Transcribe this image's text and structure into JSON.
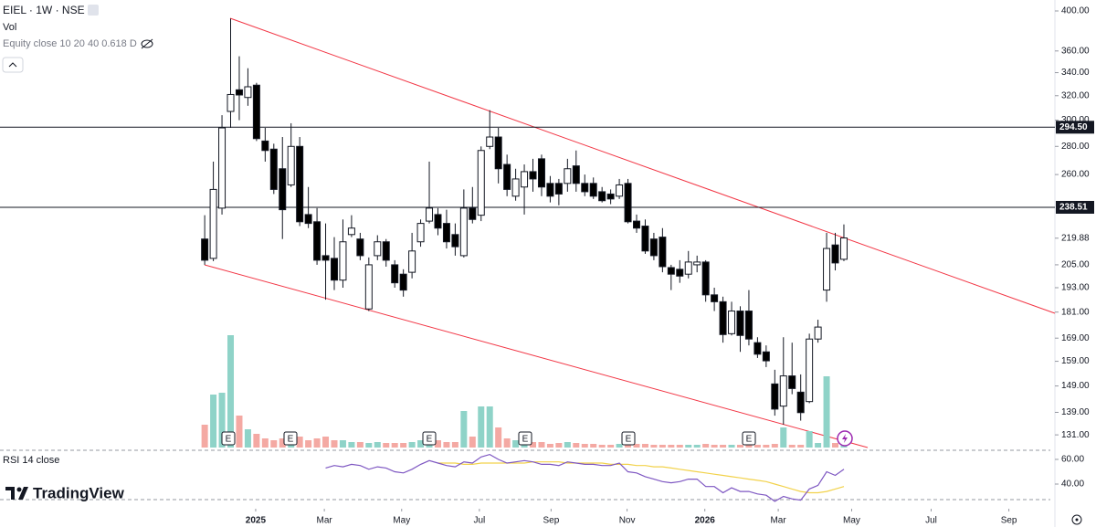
{
  "chart_data": {
    "type": "candlestick",
    "title": "EIEL · 1W · NSE",
    "volume_label": "Vol",
    "indicator_label": "Equity close 10 20 40 0.618 D",
    "brand": "TradingView",
    "log_scale": true,
    "up_color": "#ffffff",
    "down_color": "#000000",
    "volume_up_color": "#8fd3c8",
    "volume_down_color": "#f4a9a3",
    "xlim": [
      -23.7,
      97.9
    ],
    "xticks": [
      {
        "value": 5.9,
        "label": "2025"
      },
      {
        "value": 13.85,
        "label": "Mar"
      },
      {
        "value": 22.8,
        "label": "May"
      },
      {
        "value": 31.8,
        "label": "Jul"
      },
      {
        "value": 40.1,
        "label": "Sep"
      },
      {
        "value": 48.9,
        "label": "Nov"
      },
      {
        "value": 57.9,
        "label": "2026"
      },
      {
        "value": 66.4,
        "label": "Mar"
      },
      {
        "value": 74.9,
        "label": "May"
      },
      {
        "value": 84.1,
        "label": "Jul"
      },
      {
        "value": 93.1,
        "label": "Sep"
      }
    ],
    "ylim": [
      126.7,
      411.7
    ],
    "yticks": [
      {
        "value": 400,
        "label": "400.00"
      },
      {
        "value": 360,
        "label": "360.00"
      },
      {
        "value": 340,
        "label": "340.00"
      },
      {
        "value": 320,
        "label": "320.00"
      },
      {
        "value": 300,
        "label": "300.00"
      },
      {
        "value": 280,
        "label": "280.00"
      },
      {
        "value": 260,
        "label": "260.00"
      },
      219.88,
      {
        "value": 205,
        "label": "205.00"
      },
      {
        "value": 193,
        "label": "193.00"
      },
      {
        "value": 181,
        "label": "181.00"
      },
      {
        "value": 169,
        "label": "169.00"
      },
      {
        "value": 159,
        "label": "159.00"
      },
      {
        "value": 149,
        "label": "149.00"
      },
      {
        "value": 139,
        "label": "139.00"
      },
      {
        "value": 131,
        "label": "131.00"
      }
    ],
    "hlines": [
      {
        "value": 294.5,
        "label": "294.50"
      },
      238.51
    ],
    "open": [
      219.4,
      208.5,
      238,
      307,
      325,
      318.5,
      329,
      284,
      278,
      264,
      253,
      280,
      234,
      229.6,
      210,
      208.5,
      196.9,
      222,
      219.4,
      182.5,
      210,
      217.8,
      205,
      200,
      201,
      217.8,
      230,
      234,
      228.6,
      222,
      210,
      238,
      233.6,
      280,
      287,
      267,
      245.6,
      251.6,
      262,
      271,
      254,
      254,
      254,
      266,
      254,
      254,
      248.5,
      247,
      245.6,
      254,
      230,
      227,
      219.4,
      220.5,
      203.5,
      202.6,
      200,
      205,
      206.5,
      189.4,
      186,
      171,
      181.5,
      181.5,
      167,
      163,
      149.8,
      141.3,
      153,
      146.6,
      143,
      168.6,
      191.8,
      216,
      208
    ],
    "high": [
      233.6,
      269,
      304,
      392,
      355,
      344,
      331,
      294,
      282,
      287,
      297.6,
      287,
      251.6,
      238,
      228.6,
      220.5,
      231,
      233.6,
      223,
      209,
      221.6,
      219.4,
      207.5,
      202.6,
      223,
      231,
      269,
      238,
      237,
      228.6,
      250,
      251.6,
      280,
      308,
      294,
      274,
      264,
      267,
      271,
      274,
      259,
      257,
      271,
      277,
      260,
      258,
      251.6,
      250,
      257,
      257,
      234,
      231,
      223,
      225.8,
      205,
      207.5,
      212.6,
      210,
      207.5,
      193,
      188.5,
      186,
      183.8,
      191.8,
      169.4,
      165.8,
      155.5,
      169.4,
      167,
      153.6,
      171,
      177.4,
      223,
      223,
      228
    ],
    "low": [
      205,
      207,
      234,
      294,
      300,
      311.6,
      284,
      269,
      247,
      219.4,
      251.6,
      227,
      225.8,
      205,
      187,
      191.8,
      193,
      220.5,
      207.5,
      181.5,
      207.5,
      204,
      193,
      188.5,
      197.8,
      215,
      228.6,
      221.6,
      214,
      210,
      209,
      228.6,
      230,
      278,
      254,
      245.6,
      242.7,
      234,
      248.5,
      245.6,
      241.6,
      239.8,
      248.5,
      248.5,
      245.6,
      243.8,
      241.6,
      240.5,
      243.8,
      228.6,
      223,
      211,
      207.5,
      201,
      191.8,
      195.5,
      197.8,
      201,
      186,
      181.5,
      167,
      170.2,
      163,
      165.8,
      160.4,
      156.6,
      137.8,
      134.6,
      145.8,
      136,
      142.4,
      167,
      186,
      202,
      207
    ],
    "close": [
      207.5,
      250,
      294,
      321,
      320.6,
      327.6,
      285.8,
      277,
      250,
      237,
      280,
      229.6,
      228.6,
      207.5,
      207.5,
      196.9,
      217.8,
      225.8,
      210,
      205,
      217.8,
      207.5,
      195.5,
      191.8,
      212.6,
      228.6,
      238,
      225.8,
      217.8,
      215,
      238,
      231,
      277,
      287,
      264,
      250,
      257,
      262,
      257,
      251.6,
      245.6,
      247,
      264,
      254,
      248.5,
      245.6,
      242.7,
      243.8,
      253,
      229.6,
      225.8,
      212.6,
      210,
      204,
      200,
      199,
      206.5,
      206.5,
      189.4,
      186,
      170.6,
      181.5,
      170.2,
      168.6,
      162,
      159.2,
      140.2,
      153,
      148,
      138.9,
      168.6,
      174,
      214,
      206,
      220
    ],
    "vlim": [
      0,
      130
    ],
    "volume": [
      25,
      58,
      60,
      123,
      35,
      20,
      15,
      10,
      8,
      10,
      8,
      12,
      8,
      10,
      12,
      8,
      8,
      6,
      6,
      5,
      6,
      5,
      5,
      5,
      6,
      8,
      10,
      8,
      6,
      6,
      40,
      12,
      45,
      45,
      22,
      10,
      8,
      14,
      6,
      6,
      4,
      5,
      6,
      5,
      4,
      4,
      3,
      3,
      4,
      5,
      4,
      4,
      3,
      3,
      3,
      3,
      3,
      3,
      4,
      3,
      3,
      3,
      3,
      4,
      3,
      3,
      4,
      22,
      3,
      3,
      18,
      5,
      78,
      5,
      5
    ],
    "rsi": {
      "title": "RSI 14 close",
      "color": "#7e57c2",
      "ma_color": "#f2d24b",
      "ylim": [
        21.5,
        69.6
      ],
      "yticks": [
        {
          "value": 60,
          "label": "60.00"
        },
        {
          "value": 40,
          "label": "40.00"
        }
      ],
      "values": [
        null,
        null,
        null,
        null,
        null,
        null,
        null,
        null,
        null,
        null,
        null,
        null,
        null,
        null,
        53,
        55,
        54,
        56,
        55,
        52,
        54,
        53,
        50,
        49,
        52,
        56,
        59,
        57,
        55,
        54,
        58,
        57,
        62,
        64,
        60,
        57,
        58,
        59,
        58,
        56,
        56,
        55,
        58,
        57,
        56,
        56,
        55,
        55,
        57,
        50,
        49,
        46,
        44,
        42,
        41,
        42,
        44,
        44,
        38,
        38,
        33,
        37,
        34,
        34,
        32,
        31,
        26,
        30,
        28,
        27,
        36,
        39,
        50,
        47,
        52
      ],
      "ma": [
        null,
        null,
        null,
        null,
        null,
        null,
        null,
        null,
        null,
        null,
        null,
        null,
        null,
        null,
        null,
        null,
        null,
        null,
        null,
        null,
        null,
        null,
        null,
        null,
        null,
        null,
        null,
        57,
        57,
        57,
        56,
        56,
        57,
        57,
        57,
        57,
        57,
        57,
        58,
        58,
        58,
        58,
        57,
        57,
        57,
        57,
        57,
        56,
        56,
        56,
        55,
        55,
        54,
        54,
        53,
        52,
        51,
        50,
        49,
        48,
        47,
        46,
        45,
        44,
        43,
        42,
        40,
        38,
        36,
        34,
        33,
        33,
        34,
        36,
        38
      ]
    }
  }
}
